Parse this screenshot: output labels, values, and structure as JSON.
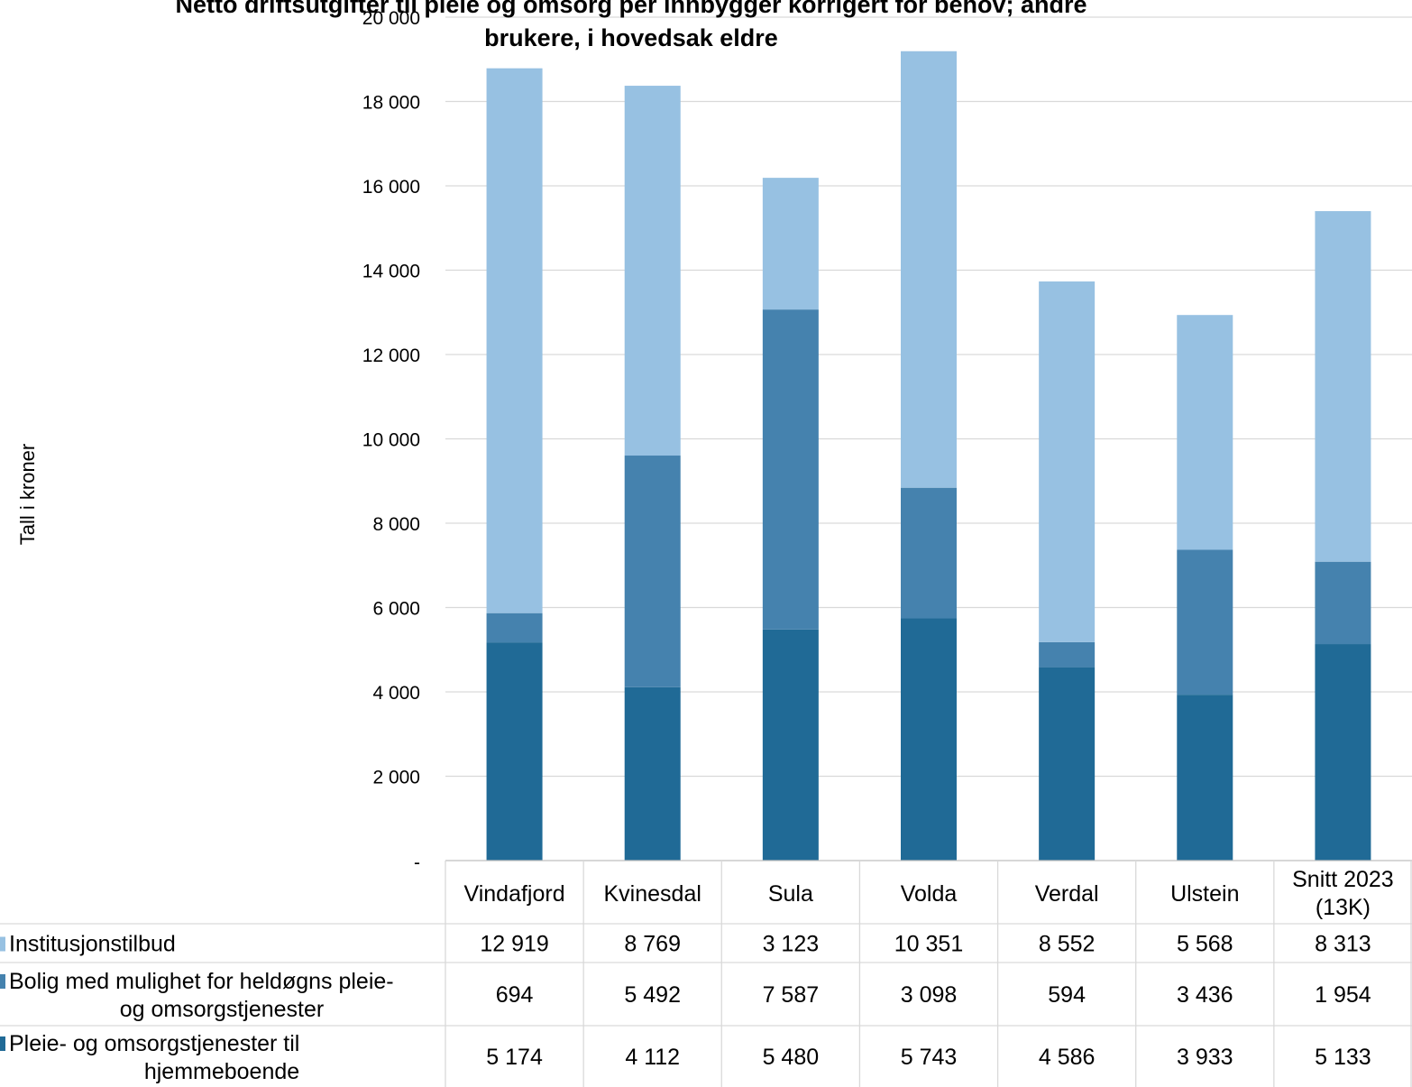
{
  "chart_data": {
    "type": "bar",
    "stacked": true,
    "title_line1": "Netto driftsutgifter til pleie og omsorg per innbygger korrigert for behov; andre",
    "title_line2": "brukere, i hovedsak eldre",
    "ylabel": "Tall i kroner",
    "ylim": [
      0,
      20000
    ],
    "yticks": [
      "-",
      "2 000",
      "4 000",
      "6 000",
      "8 000",
      "10 000",
      "12 000",
      "14 000",
      "16 000",
      "18 000",
      "20 000"
    ],
    "categories": [
      [
        "Vindafjord"
      ],
      [
        "Kvinesdal"
      ],
      [
        "Sula"
      ],
      [
        "Volda"
      ],
      [
        "Verdal"
      ],
      [
        "Ulstein"
      ],
      [
        "Snitt 2023",
        "(13K)"
      ]
    ],
    "grid": true,
    "legend": "data-table",
    "series": [
      {
        "name_lines": [
          "Institusjonstilbud"
        ],
        "color": "#97c1e2",
        "values": [
          12919,
          8769,
          3123,
          10351,
          8552,
          5568,
          8313
        ],
        "labels": [
          "12 919",
          "8 769",
          "3 123",
          "10 351",
          "8 552",
          "5 568",
          "8 313"
        ]
      },
      {
        "name_lines": [
          "Bolig med mulighet for heldøgns pleie-",
          "og omsorgstjenester"
        ],
        "color": "#4582ae",
        "values": [
          694,
          5492,
          7587,
          3098,
          594,
          3436,
          1954
        ],
        "labels": [
          "694",
          "5 492",
          "7 587",
          "3 098",
          "594",
          "3 436",
          "1 954"
        ]
      },
      {
        "name_lines": [
          "Pleie- og omsorgstjenester til",
          "hjemmeboende"
        ],
        "color": "#206a96",
        "values": [
          5174,
          4112,
          5480,
          5743,
          4586,
          3933,
          5133
        ],
        "labels": [
          "5 174",
          "4 112",
          "5 480",
          "5 743",
          "4 586",
          "3 933",
          "5 133"
        ]
      }
    ]
  }
}
